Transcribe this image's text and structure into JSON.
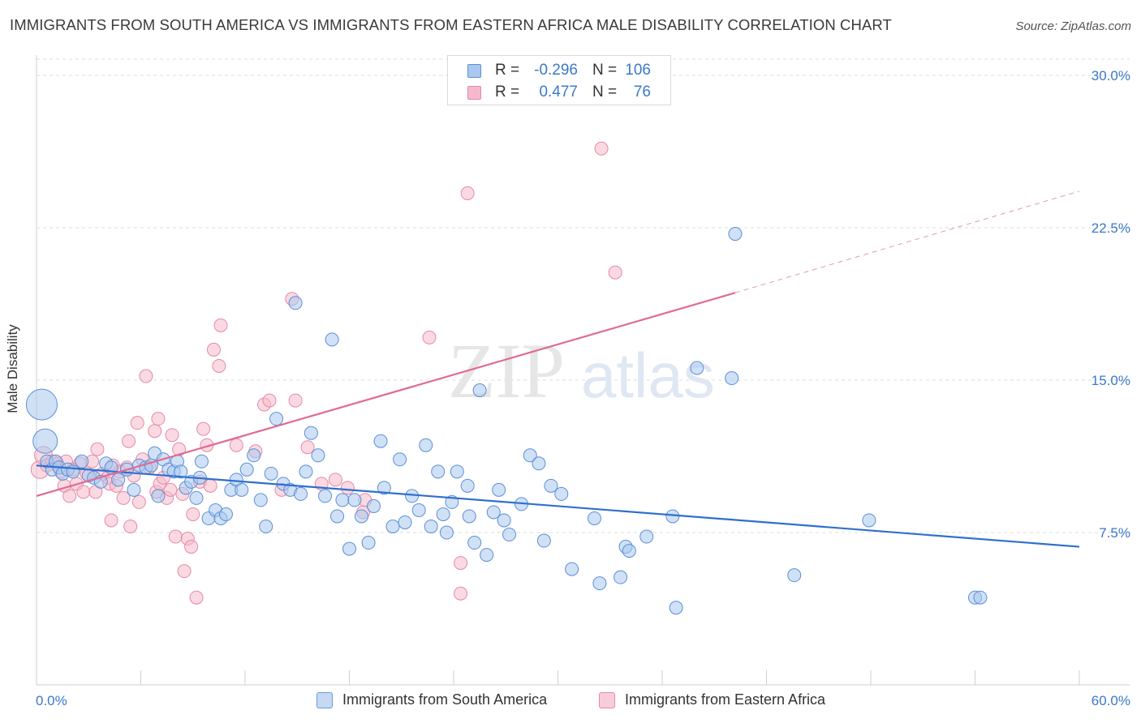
{
  "title": "IMMIGRANTS FROM SOUTH AMERICA VS IMMIGRANTS FROM EASTERN AFRICA MALE DISABILITY CORRELATION CHART",
  "source": "Source: ZipAtlas.com",
  "watermark": {
    "zip": "ZIP",
    "atlas": "atlas"
  },
  "legend_top": [
    {
      "r_label": "R =",
      "r_value": "-0.296",
      "n_label": "N =",
      "n_value": "106"
    },
    {
      "r_label": "R =",
      "r_value": "0.477",
      "n_label": "N =",
      "n_value": "76"
    }
  ],
  "colors": {
    "blue_fill": "#a9c8ee",
    "blue_stroke": "#5b8fd6",
    "blue_line": "#2f6fce",
    "pink_fill": "#f5b9cb",
    "pink_stroke": "#e48aa6",
    "pink_line": "#e06a92",
    "axis_text": "#3b78c9",
    "grid": "#dedede"
  },
  "chart_data": {
    "type": "scatter",
    "title": "IMMIGRANTS FROM SOUTH AMERICA VS IMMIGRANTS FROM EASTERN AFRICA MALE DISABILITY CORRELATION CHART",
    "xlabel": "",
    "ylabel": "Male Disability",
    "xlim": [
      0,
      60
    ],
    "ylim": [
      0,
      30.8
    ],
    "x_tick_labels": [
      "0.0%",
      "60.0%"
    ],
    "y_ticks": [
      7.5,
      15.0,
      22.5,
      30.0
    ],
    "y_tick_labels": [
      "7.5%",
      "15.0%",
      "22.5%",
      "30.0%"
    ],
    "grid": "horizontal dashed",
    "legend_placement": "top-center and bottom",
    "series": [
      {
        "name": "Immigrants from South America",
        "trend": {
          "x": [
            0,
            60
          ],
          "y": [
            10.8,
            6.8
          ],
          "style": "solid"
        },
        "points": [
          [
            0.3,
            13.8,
            18
          ],
          [
            0.5,
            12.0,
            14
          ],
          [
            0.6,
            11.0,
            7
          ],
          [
            0.9,
            10.6,
            7
          ],
          [
            1.1,
            11.0,
            7
          ],
          [
            1.3,
            10.7,
            7
          ],
          [
            1.5,
            10.4,
            7
          ],
          [
            1.8,
            10.6,
            7
          ],
          [
            2.1,
            10.5,
            7
          ],
          [
            2.6,
            11.0,
            7
          ],
          [
            3.0,
            10.3,
            7
          ],
          [
            3.3,
            10.2,
            7
          ],
          [
            3.7,
            10.0,
            7
          ],
          [
            4.0,
            10.9,
            7
          ],
          [
            4.3,
            10.7,
            7
          ],
          [
            4.7,
            10.1,
            7
          ],
          [
            5.2,
            10.6,
            7
          ],
          [
            5.6,
            9.6,
            7
          ],
          [
            5.9,
            10.8,
            7
          ],
          [
            6.3,
            10.7,
            7
          ],
          [
            6.6,
            10.8,
            7
          ],
          [
            6.8,
            11.4,
            7
          ],
          [
            7.0,
            9.3,
            7
          ],
          [
            7.3,
            11.1,
            7
          ],
          [
            7.6,
            10.6,
            7
          ],
          [
            7.9,
            10.5,
            7
          ],
          [
            8.1,
            11.0,
            7
          ],
          [
            8.3,
            10.5,
            7
          ],
          [
            8.6,
            9.7,
            7
          ],
          [
            8.9,
            10.0,
            7
          ],
          [
            9.2,
            9.2,
            7
          ],
          [
            9.4,
            10.2,
            7
          ],
          [
            9.5,
            11.0,
            7
          ],
          [
            9.9,
            8.2,
            7
          ],
          [
            10.3,
            8.6,
            7
          ],
          [
            10.6,
            8.2,
            7
          ],
          [
            10.9,
            8.4,
            7
          ],
          [
            11.2,
            9.6,
            7
          ],
          [
            11.5,
            10.1,
            7
          ],
          [
            11.8,
            9.6,
            7
          ],
          [
            12.1,
            10.6,
            7
          ],
          [
            12.5,
            11.3,
            7
          ],
          [
            12.9,
            9.1,
            7
          ],
          [
            13.2,
            7.8,
            7
          ],
          [
            13.5,
            10.4,
            7
          ],
          [
            13.8,
            13.1,
            7
          ],
          [
            14.2,
            9.9,
            7
          ],
          [
            14.6,
            9.6,
            7
          ],
          [
            14.9,
            18.8,
            7
          ],
          [
            15.2,
            9.4,
            7
          ],
          [
            15.5,
            10.5,
            7
          ],
          [
            15.8,
            12.4,
            7
          ],
          [
            16.2,
            11.3,
            7
          ],
          [
            16.6,
            9.3,
            7
          ],
          [
            17.0,
            17.0,
            7
          ],
          [
            17.3,
            8.3,
            7
          ],
          [
            17.6,
            9.1,
            7
          ],
          [
            18.0,
            6.7,
            7
          ],
          [
            18.3,
            9.1,
            7
          ],
          [
            18.7,
            8.3,
            7
          ],
          [
            19.1,
            7.0,
            7
          ],
          [
            19.4,
            8.8,
            7
          ],
          [
            19.8,
            12.0,
            7
          ],
          [
            20.0,
            9.7,
            7
          ],
          [
            20.5,
            7.8,
            7
          ],
          [
            20.9,
            11.1,
            7
          ],
          [
            21.2,
            8.0,
            7
          ],
          [
            21.6,
            9.3,
            7
          ],
          [
            22.0,
            8.6,
            7
          ],
          [
            22.4,
            11.8,
            7
          ],
          [
            22.7,
            7.8,
            7
          ],
          [
            23.1,
            10.5,
            7
          ],
          [
            23.4,
            8.4,
            7
          ],
          [
            23.6,
            7.5,
            7
          ],
          [
            23.9,
            9.0,
            7
          ],
          [
            24.2,
            10.5,
            7
          ],
          [
            24.8,
            9.8,
            7
          ],
          [
            24.9,
            8.3,
            7
          ],
          [
            25.2,
            7.0,
            7
          ],
          [
            25.5,
            14.5,
            7
          ],
          [
            25.9,
            6.4,
            7
          ],
          [
            26.3,
            8.5,
            7
          ],
          [
            26.6,
            9.6,
            7
          ],
          [
            26.9,
            8.1,
            7
          ],
          [
            27.2,
            7.4,
            7
          ],
          [
            27.9,
            8.9,
            7
          ],
          [
            28.4,
            11.3,
            7
          ],
          [
            28.9,
            10.9,
            7
          ],
          [
            29.2,
            7.1,
            7
          ],
          [
            29.6,
            9.8,
            7
          ],
          [
            30.2,
            9.4,
            7
          ],
          [
            30.8,
            5.7,
            7
          ],
          [
            32.1,
            8.2,
            7
          ],
          [
            32.4,
            5.0,
            7
          ],
          [
            33.6,
            5.3,
            7
          ],
          [
            33.9,
            6.8,
            7
          ],
          [
            34.1,
            6.6,
            7
          ],
          [
            35.1,
            7.3,
            7
          ],
          [
            36.6,
            8.3,
            7
          ],
          [
            36.8,
            3.8,
            7
          ],
          [
            38.0,
            15.6,
            7
          ],
          [
            40.0,
            15.1,
            7
          ],
          [
            40.2,
            22.2,
            7
          ],
          [
            43.6,
            5.4,
            7
          ],
          [
            47.9,
            8.1,
            7
          ],
          [
            54.0,
            4.3,
            7
          ],
          [
            54.3,
            4.3,
            7
          ]
        ]
      },
      {
        "name": "Immigrants from Eastern Africa",
        "trend": {
          "x": [
            0,
            40.2
          ],
          "y": [
            9.3,
            19.3
          ],
          "style": "solid",
          "extended": {
            "x": [
              40.2,
              60
            ],
            "y": [
              19.3,
              24.3
            ],
            "style": "dashed"
          }
        },
        "points": [
          [
            0.2,
            10.6,
            10
          ],
          [
            0.4,
            11.3,
            10
          ],
          [
            0.6,
            10.8,
            7
          ],
          [
            0.9,
            11.0,
            7
          ],
          [
            1.2,
            10.9,
            7
          ],
          [
            1.4,
            10.5,
            7
          ],
          [
            1.6,
            9.8,
            7
          ],
          [
            1.7,
            11.0,
            7
          ],
          [
            1.9,
            9.3,
            7
          ],
          [
            2.1,
            10.6,
            7
          ],
          [
            2.3,
            9.9,
            7
          ],
          [
            2.5,
            10.9,
            7
          ],
          [
            2.7,
            9.5,
            7
          ],
          [
            2.9,
            10.4,
            7
          ],
          [
            3.2,
            11.0,
            7
          ],
          [
            3.4,
            9.5,
            7
          ],
          [
            3.5,
            11.6,
            7
          ],
          [
            3.8,
            10.4,
            7
          ],
          [
            4.1,
            10.2,
            7
          ],
          [
            4.2,
            9.9,
            7
          ],
          [
            4.3,
            8.1,
            7
          ],
          [
            4.4,
            10.8,
            7
          ],
          [
            4.6,
            9.8,
            7
          ],
          [
            4.8,
            10.5,
            7
          ],
          [
            5.0,
            9.2,
            7
          ],
          [
            5.2,
            10.7,
            7
          ],
          [
            5.3,
            12.0,
            7
          ],
          [
            5.4,
            7.8,
            7
          ],
          [
            5.6,
            10.3,
            7
          ],
          [
            5.8,
            12.9,
            7
          ],
          [
            5.9,
            9.0,
            7
          ],
          [
            6.1,
            11.1,
            7
          ],
          [
            6.3,
            15.2,
            7
          ],
          [
            6.5,
            10.7,
            7
          ],
          [
            6.8,
            12.5,
            7
          ],
          [
            6.9,
            9.5,
            7
          ],
          [
            7.0,
            13.1,
            7
          ],
          [
            7.1,
            9.9,
            7
          ],
          [
            7.3,
            10.2,
            7
          ],
          [
            7.5,
            9.2,
            7
          ],
          [
            7.7,
            9.6,
            7
          ],
          [
            7.8,
            12.3,
            7
          ],
          [
            8.0,
            7.3,
            7
          ],
          [
            8.2,
            11.6,
            7
          ],
          [
            8.4,
            9.4,
            7
          ],
          [
            8.5,
            5.6,
            7
          ],
          [
            8.7,
            7.2,
            7
          ],
          [
            8.9,
            6.8,
            7
          ],
          [
            9.0,
            8.4,
            7
          ],
          [
            9.2,
            4.3,
            7
          ],
          [
            9.4,
            10.0,
            7
          ],
          [
            9.6,
            12.6,
            7
          ],
          [
            9.8,
            11.8,
            7
          ],
          [
            10.0,
            9.8,
            7
          ],
          [
            10.2,
            16.5,
            7
          ],
          [
            10.5,
            15.7,
            7
          ],
          [
            10.6,
            17.7,
            7
          ],
          [
            11.5,
            11.8,
            7
          ],
          [
            12.6,
            11.5,
            7
          ],
          [
            13.1,
            13.8,
            7
          ],
          [
            13.4,
            14.0,
            7
          ],
          [
            14.1,
            9.6,
            7
          ],
          [
            14.7,
            19.0,
            7
          ],
          [
            14.9,
            14.0,
            7
          ],
          [
            15.6,
            11.7,
            7
          ],
          [
            16.4,
            9.9,
            7
          ],
          [
            17.2,
            10.1,
            7
          ],
          [
            17.9,
            9.7,
            7
          ],
          [
            18.8,
            8.5,
            7
          ],
          [
            18.9,
            9.1,
            7
          ],
          [
            22.6,
            17.1,
            7
          ],
          [
            24.4,
            6.0,
            7
          ],
          [
            24.4,
            4.5,
            7
          ],
          [
            24.8,
            24.2,
            7
          ],
          [
            32.5,
            26.4,
            7
          ],
          [
            33.3,
            20.3,
            7
          ]
        ]
      }
    ]
  },
  "legend_bottom": [
    "Immigrants from South America",
    "Immigrants from Eastern Africa"
  ]
}
